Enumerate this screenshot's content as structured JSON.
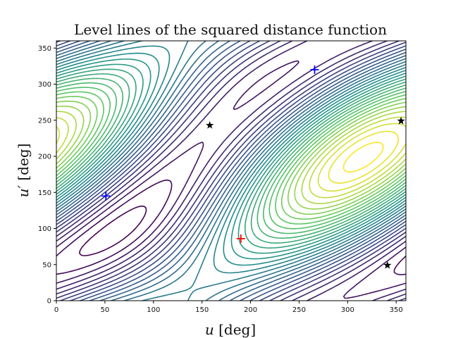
{
  "chart_data": {
    "type": "contour",
    "title": "Level lines of the squared distance function",
    "xlabel_var": "u",
    "xlabel_unit": " [deg]",
    "ylabel_var": "u′",
    "ylabel_unit": " [deg]",
    "xlim": [
      0,
      360
    ],
    "ylim": [
      0,
      360
    ],
    "xticks": [
      "0",
      "50",
      "100",
      "150",
      "200",
      "250",
      "300",
      "350"
    ],
    "yticks": [
      "0",
      "50",
      "100",
      "150",
      "200",
      "250",
      "300",
      "350"
    ],
    "colormap": [
      "#440154",
      "#3b528b",
      "#21918c",
      "#5ec962",
      "#fde725"
    ],
    "markers": [
      {
        "type": "plus",
        "color": "#0000ff",
        "x": 51,
        "y": 145
      },
      {
        "type": "plus",
        "color": "#0000ff",
        "x": 266,
        "y": 320
      },
      {
        "type": "plus",
        "color": "#ff0000",
        "x": 190,
        "y": 86
      },
      {
        "type": "star",
        "color": "#000000",
        "x": 158,
        "y": 243
      },
      {
        "type": "star",
        "color": "#000000",
        "x": 355,
        "y": 249
      },
      {
        "type": "star",
        "color": "#000000",
        "x": 341,
        "y": 49
      }
    ]
  }
}
